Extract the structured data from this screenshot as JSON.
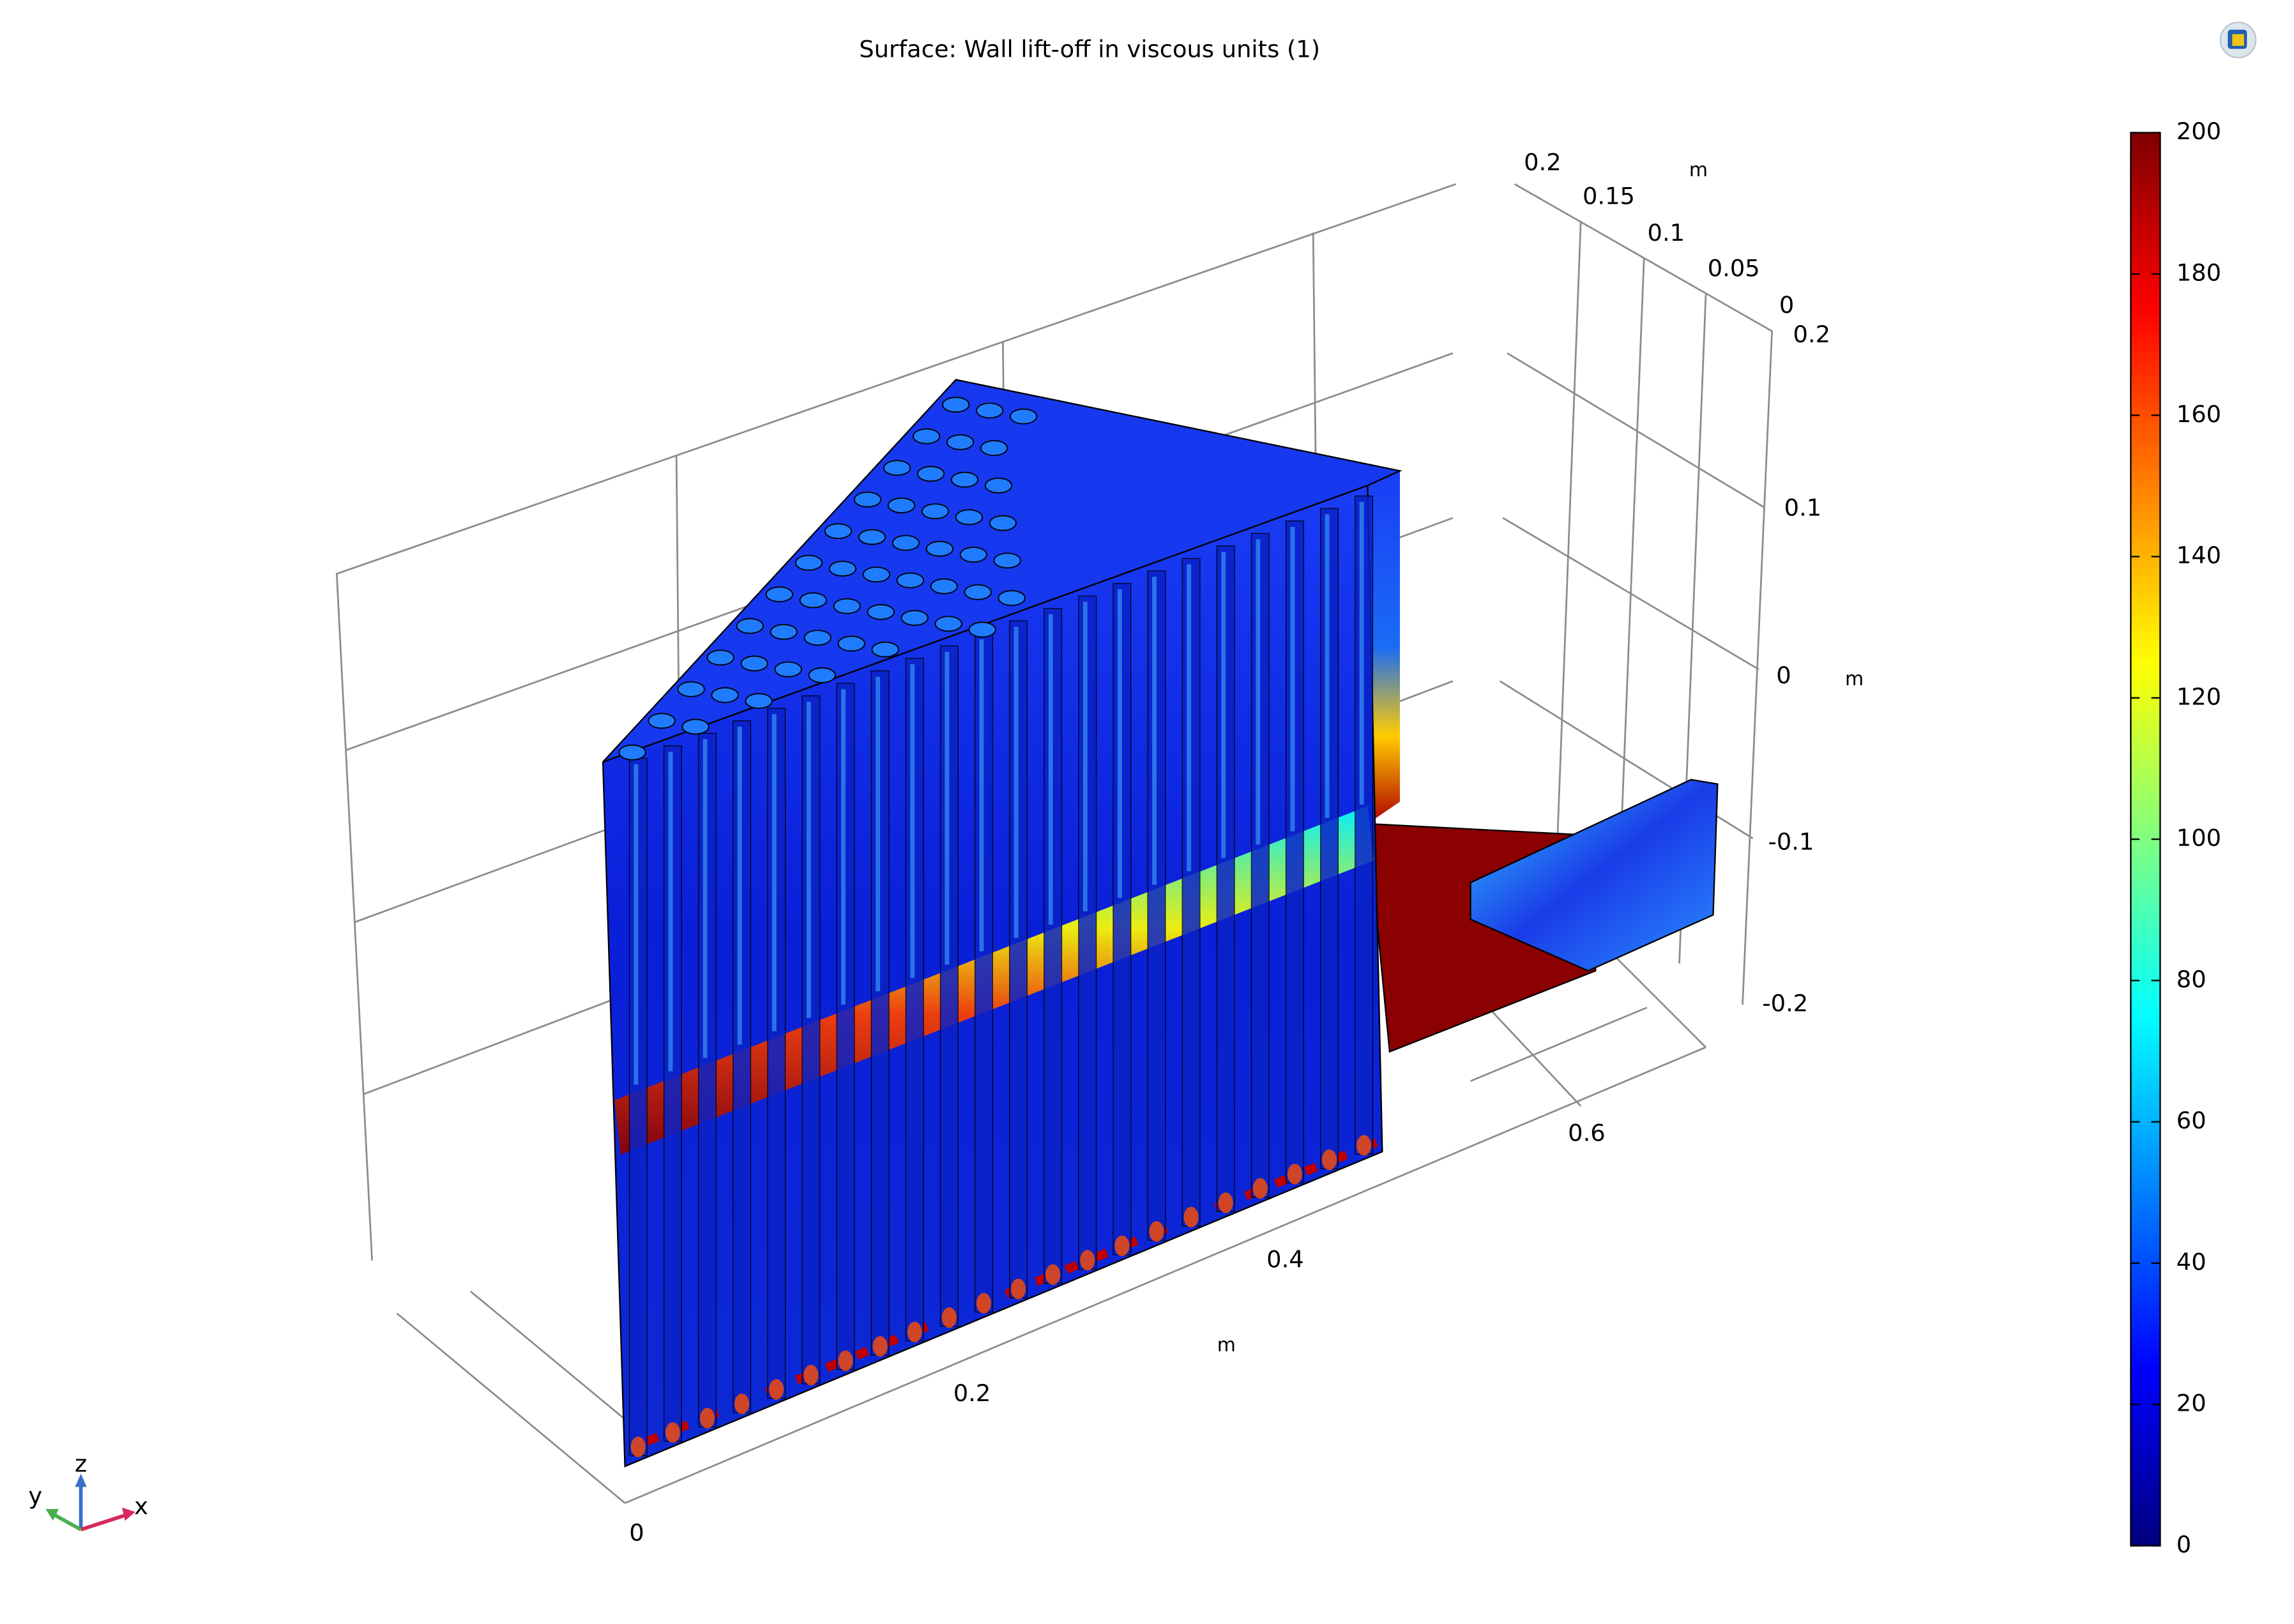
{
  "chart_data": {
    "type": "surface",
    "title": "Surface: Wall lift-off in viscous units (1)",
    "colorbar": {
      "lim": [
        0,
        200
      ],
      "ticks": [
        0,
        20,
        40,
        60,
        80,
        100,
        120,
        140,
        160,
        180,
        200
      ],
      "colors": [
        "#00007f",
        "#0000ff",
        "#0080ff",
        "#00ffff",
        "#80ff80",
        "#ffff00",
        "#ff8000",
        "#ff0000",
        "#7f0000"
      ]
    },
    "x_axis": {
      "label": "m",
      "ticks": [
        0,
        0.2,
        0.4,
        0.6
      ]
    },
    "y_axis": {
      "label": "m",
      "ticks": [
        0.2,
        0.15,
        0.1,
        0.05,
        0
      ]
    },
    "z_axis": {
      "label": "m",
      "ticks": [
        0.2,
        0.1,
        0,
        -0.1,
        -0.2
      ]
    },
    "triad": {
      "x": "x",
      "y": "y",
      "z": "z"
    }
  }
}
